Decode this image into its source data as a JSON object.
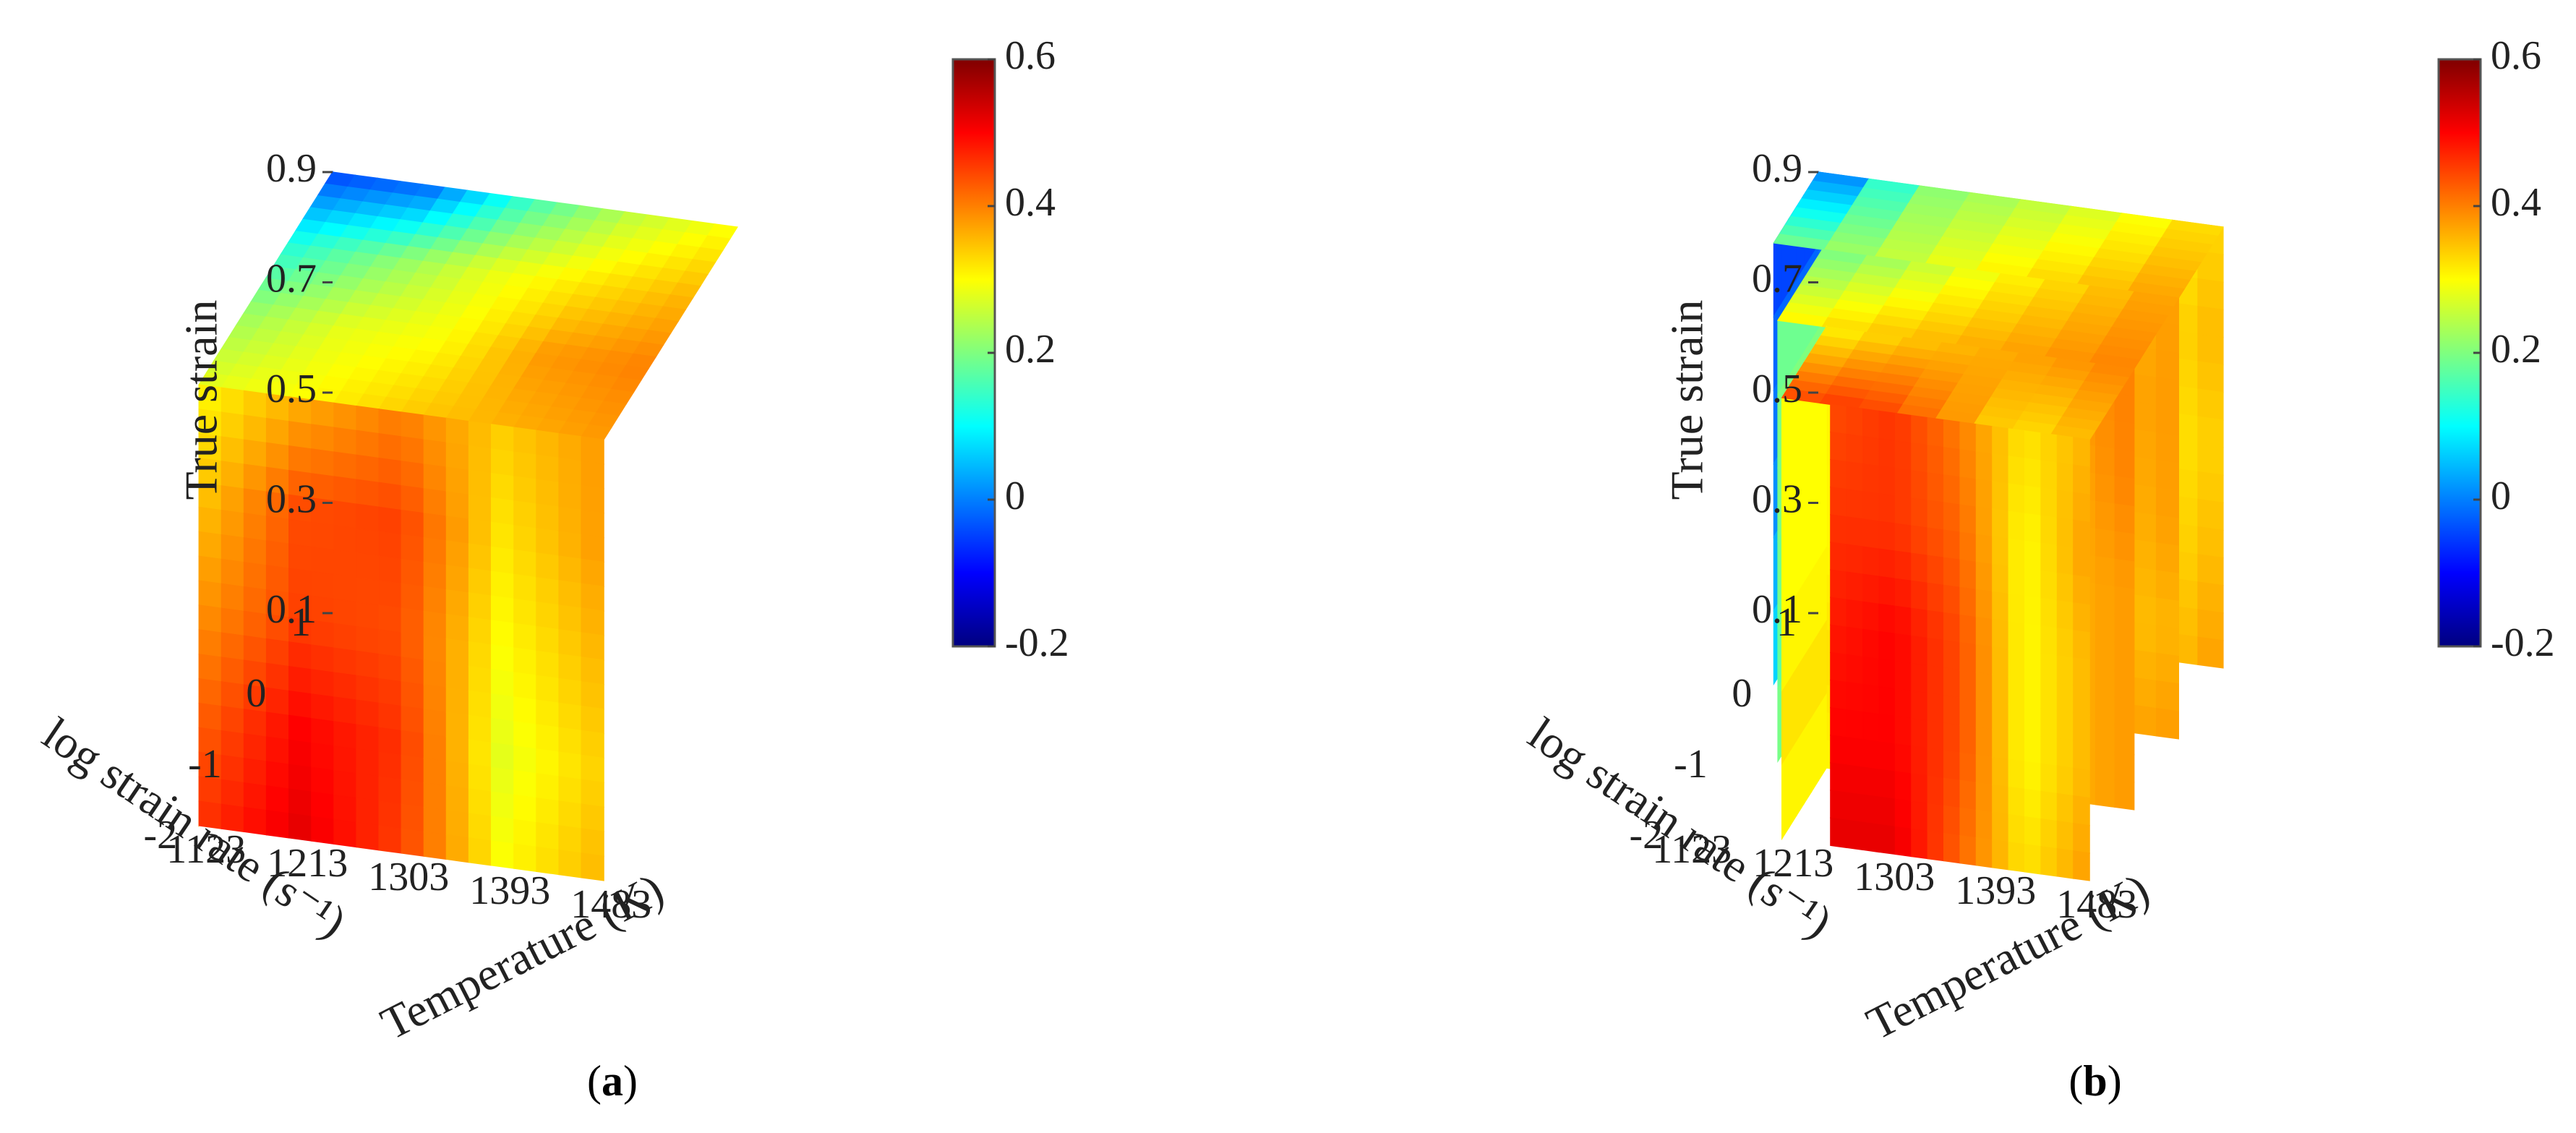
{
  "colors": {
    "jet": [
      "#00007f",
      "#0000ff",
      "#007fff",
      "#00ffff",
      "#7fff7f",
      "#ffff00",
      "#ff7f00",
      "#ff0000",
      "#7f0000"
    ],
    "axis": "#444444",
    "text": "#222222"
  },
  "chart_data": [
    {
      "type": "heatmap",
      "subtype": "3d-cube-slice",
      "panel_label": "a",
      "zlabel": "True strain",
      "ylabel": "log strain rate (s⁻¹)",
      "xlabel": "Temperature (K)",
      "x_ticks": [
        "1123",
        "1213",
        "1303",
        "1393",
        "1483"
      ],
      "y_ticks": [
        "1",
        "0",
        "-1",
        "-2"
      ],
      "z_ticks": [
        "0.9",
        "0.7",
        "0.5",
        "0.3",
        "0.1"
      ],
      "x_values": [
        1123,
        1213,
        1303,
        1393,
        1483
      ],
      "y_values": [
        1,
        0,
        -1,
        -2
      ],
      "z_values": [
        0.1,
        0.3,
        0.5,
        0.7,
        0.9
      ],
      "colorbar": {
        "range": [
          -0.2,
          0.6
        ],
        "ticks": [
          "0.6",
          "0.4",
          "0.2",
          "0",
          "-0.2"
        ]
      },
      "faces": {
        "left": {
          "rows_z": [
            0.9,
            0.7,
            0.5,
            0.3,
            0.1
          ],
          "cols_y": [
            1,
            0,
            -1,
            -2
          ],
          "values": [
            [
              -0.08,
              0.1,
              0.18,
              0.24
            ],
            [
              0.0,
              0.15,
              0.22,
              0.28
            ],
            [
              0.02,
              0.16,
              0.2,
              0.3
            ],
            [
              0.05,
              0.18,
              0.22,
              0.32
            ],
            [
              0.1,
              0.2,
              0.26,
              0.36
            ]
          ]
        },
        "front": {
          "rows_z": [
            0.9,
            0.7,
            0.5,
            0.3,
            0.1
          ],
          "cols_x": [
            1123,
            1213,
            1303,
            1393,
            1483
          ],
          "values": [
            [
              0.3,
              0.36,
              0.4,
              0.34,
              0.38
            ],
            [
              0.34,
              0.44,
              0.45,
              0.32,
              0.38
            ],
            [
              0.38,
              0.45,
              0.44,
              0.3,
              0.36
            ],
            [
              0.42,
              0.5,
              0.46,
              0.28,
              0.34
            ],
            [
              0.46,
              0.52,
              0.45,
              0.3,
              0.36
            ]
          ]
        },
        "top": {
          "rows_y": [
            1,
            0,
            -1,
            -2
          ],
          "cols_x": [
            1123,
            1213,
            1303,
            1393,
            1483
          ],
          "values": [
            [
              -0.05,
              -0.02,
              0.15,
              0.25,
              0.3
            ],
            [
              0.12,
              0.2,
              0.28,
              0.32,
              0.36
            ],
            [
              0.22,
              0.28,
              0.3,
              0.38,
              0.4
            ],
            [
              0.28,
              0.3,
              0.34,
              0.36,
              0.38
            ]
          ]
        }
      }
    },
    {
      "type": "heatmap",
      "subtype": "3d-slices",
      "panel_label": "b",
      "zlabel": "True strain",
      "ylabel": "log strain rate (s⁻¹)",
      "xlabel": "Temperature (K)",
      "x_ticks": [
        "1123",
        "1213",
        "1303",
        "1393",
        "1483"
      ],
      "y_ticks": [
        "1",
        "0",
        "-1",
        "-2"
      ],
      "z_ticks": [
        "0.9",
        "0.7",
        "0.5",
        "0.3",
        "0.1"
      ],
      "x_values": [
        1123,
        1213,
        1303,
        1393,
        1483
      ],
      "y_values": [
        1,
        0,
        -1,
        -2
      ],
      "z_values": [
        0.1,
        0.3,
        0.5,
        0.7,
        0.9
      ],
      "colorbar": {
        "range": [
          -0.2,
          0.6
        ],
        "ticks": [
          "0.6",
          "0.4",
          "0.2",
          "0",
          "-0.2"
        ]
      },
      "slices": [
        {
          "plane": "y",
          "at": 1,
          "values": [
            [
              -0.06,
              0.2,
              0.24,
              0.28,
              0.34
            ],
            [
              -0.02,
              0.18,
              0.26,
              0.3,
              0.36
            ],
            [
              0.0,
              0.16,
              0.24,
              0.3,
              0.34
            ],
            [
              0.04,
              0.14,
              0.24,
              0.3,
              0.36
            ],
            [
              0.08,
              0.16,
              0.28,
              0.32,
              0.38
            ]
          ]
        },
        {
          "plane": "y",
          "at": 0,
          "values": [
            [
              0.18,
              0.24,
              0.3,
              0.34,
              0.38
            ],
            [
              0.2,
              0.26,
              0.32,
              0.36,
              0.38
            ],
            [
              0.2,
              0.24,
              0.34,
              0.34,
              0.38
            ],
            [
              0.18,
              0.24,
              0.32,
              0.34,
              0.36
            ],
            [
              0.2,
              0.26,
              0.34,
              0.36,
              0.38
            ]
          ]
        },
        {
          "plane": "y",
          "at": -1,
          "values": [
            [
              0.3,
              0.34,
              0.36,
              0.38,
              0.4
            ],
            [
              0.3,
              0.36,
              0.38,
              0.36,
              0.4
            ],
            [
              0.3,
              0.34,
              0.36,
              0.36,
              0.38
            ],
            [
              0.32,
              0.36,
              0.36,
              0.36,
              0.38
            ],
            [
              0.3,
              0.34,
              0.36,
              0.36,
              0.38
            ]
          ]
        },
        {
          "plane": "y",
          "at": -2,
          "values": [
            [
              0.44,
              0.46,
              0.4,
              0.32,
              0.36
            ],
            [
              0.46,
              0.46,
              0.42,
              0.3,
              0.38
            ],
            [
              0.48,
              0.5,
              0.44,
              0.3,
              0.36
            ],
            [
              0.5,
              0.5,
              0.44,
              0.3,
              0.36
            ],
            [
              0.52,
              0.52,
              0.42,
              0.32,
              0.38
            ]
          ]
        }
      ]
    }
  ]
}
